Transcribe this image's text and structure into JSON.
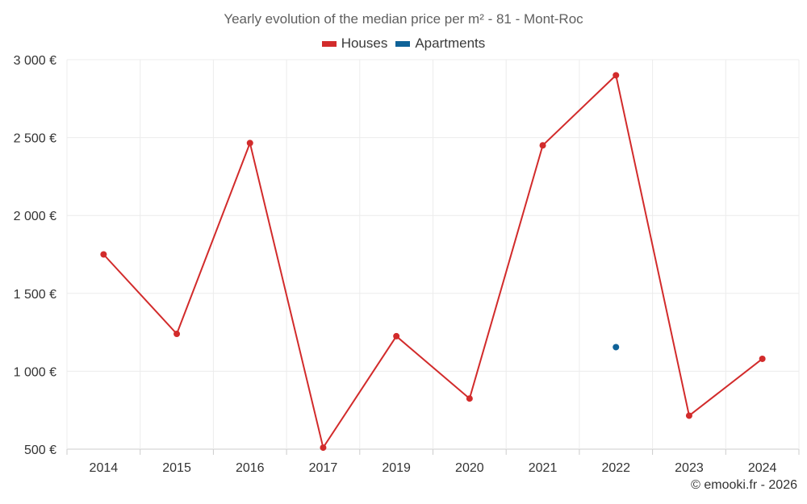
{
  "chart_data": {
    "type": "line",
    "title": "Yearly evolution of the median price per m² - 81 - Mont-Roc",
    "categories": [
      "2014",
      "2015",
      "2016",
      "2017",
      "2019",
      "2020",
      "2021",
      "2022",
      "2023",
      "2024"
    ],
    "y_ticks": [
      500,
      1000,
      1500,
      2000,
      2500,
      3000
    ],
    "y_tick_labels": [
      "500 €",
      "1 000 €",
      "1 500 €",
      "2 000 €",
      "2 500 €",
      "3 000 €"
    ],
    "ylim": [
      500,
      3000
    ],
    "grid": true,
    "legend_position": "top-center",
    "series": [
      {
        "name": "Houses",
        "color": "#d22b2b",
        "values": [
          1750,
          1240,
          2465,
          510,
          1225,
          825,
          2450,
          2900,
          715,
          1080
        ]
      },
      {
        "name": "Apartments",
        "color": "#0f6298",
        "values": [
          null,
          null,
          null,
          null,
          null,
          null,
          null,
          1155,
          null,
          null
        ]
      }
    ]
  },
  "legend": {
    "houses": "Houses",
    "apartments": "Apartments"
  },
  "credit": "© emooki.fr - 2026"
}
